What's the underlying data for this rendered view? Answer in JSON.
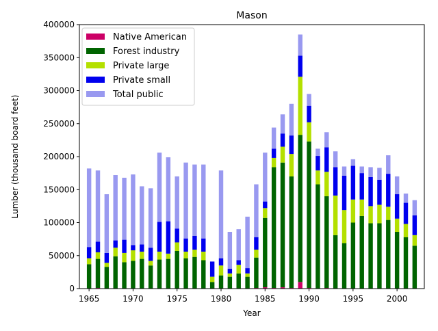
{
  "chart_data": {
    "type": "bar",
    "stacked": true,
    "title": "Mason",
    "xlabel": "Year",
    "ylabel": "Lumber (thousand board feet)",
    "ylim": [
      0,
      400000
    ],
    "xlim": [
      1963.9,
      2003.1
    ],
    "yticks": [
      0,
      50000,
      100000,
      150000,
      200000,
      250000,
      300000,
      350000,
      400000
    ],
    "xticks": [
      1965,
      1970,
      1975,
      1980,
      1985,
      1990,
      1995,
      2000
    ],
    "grid": false,
    "legend_position": "top-left",
    "x": [
      1965,
      1966,
      1967,
      1968,
      1969,
      1970,
      1971,
      1972,
      1973,
      1974,
      1975,
      1976,
      1977,
      1978,
      1979,
      1980,
      1981,
      1982,
      1983,
      1984,
      1985,
      1986,
      1987,
      1988,
      1989,
      1990,
      1991,
      1992,
      1993,
      1994,
      1995,
      1996,
      1997,
      1998,
      1999,
      2000,
      2001,
      2002
    ],
    "series": [
      {
        "name": "Native American",
        "color": "#cc0066",
        "values": [
          0,
          1000,
          0,
          0,
          0,
          0,
          0,
          0,
          0,
          0,
          0,
          0,
          0,
          0,
          0,
          0,
          0,
          0,
          0,
          1000,
          2000,
          1000,
          2000,
          1000,
          10000,
          1000,
          0,
          1000,
          0,
          0,
          0,
          0,
          0,
          0,
          0,
          0,
          0,
          0
        ]
      },
      {
        "name": "Forest industry",
        "color": "#006400",
        "values": [
          37000,
          44000,
          33000,
          49000,
          40000,
          42000,
          45000,
          35000,
          44000,
          45000,
          57000,
          46000,
          48000,
          43000,
          10000,
          20000,
          18000,
          23000,
          18000,
          46000,
          105000,
          183000,
          189000,
          169000,
          223000,
          222000,
          158000,
          139000,
          81000,
          69000,
          100000,
          110000,
          99000,
          99000,
          104000,
          86000,
          78000,
          65000
        ]
      },
      {
        "name": "Private large",
        "color": "#b4e000",
        "values": [
          9000,
          10000,
          6000,
          13000,
          14000,
          16000,
          11000,
          7000,
          12000,
          8000,
          13000,
          10000,
          11000,
          13000,
          8000,
          15000,
          5000,
          13000,
          5000,
          12000,
          15000,
          14000,
          24000,
          34000,
          88000,
          29000,
          21000,
          37000,
          60000,
          50000,
          35000,
          25000,
          26000,
          28000,
          20000,
          20000,
          20000,
          16000
        ]
      },
      {
        "name": "Private small",
        "color": "#0000ee",
        "values": [
          17000,
          16000,
          15000,
          11000,
          20000,
          8000,
          11000,
          20000,
          45000,
          49000,
          21000,
          20000,
          21000,
          20000,
          23000,
          11000,
          7000,
          7000,
          8000,
          19000,
          10000,
          14000,
          20000,
          28000,
          32000,
          25000,
          22000,
          37000,
          43000,
          52000,
          51000,
          40000,
          44000,
          38000,
          50000,
          37000,
          32000,
          30000
        ]
      },
      {
        "name": "Total public",
        "color": "#9999f0",
        "values": [
          119000,
          108000,
          89000,
          99000,
          94000,
          107000,
          88000,
          90000,
          105000,
          97000,
          79000,
          115000,
          108000,
          112000,
          0,
          133000,
          56000,
          47000,
          78000,
          80000,
          74000,
          32000,
          29000,
          48000,
          32000,
          18000,
          11000,
          23000,
          24000,
          14000,
          10000,
          10000,
          15000,
          18000,
          28000,
          27000,
          14000,
          23000
        ]
      }
    ]
  }
}
